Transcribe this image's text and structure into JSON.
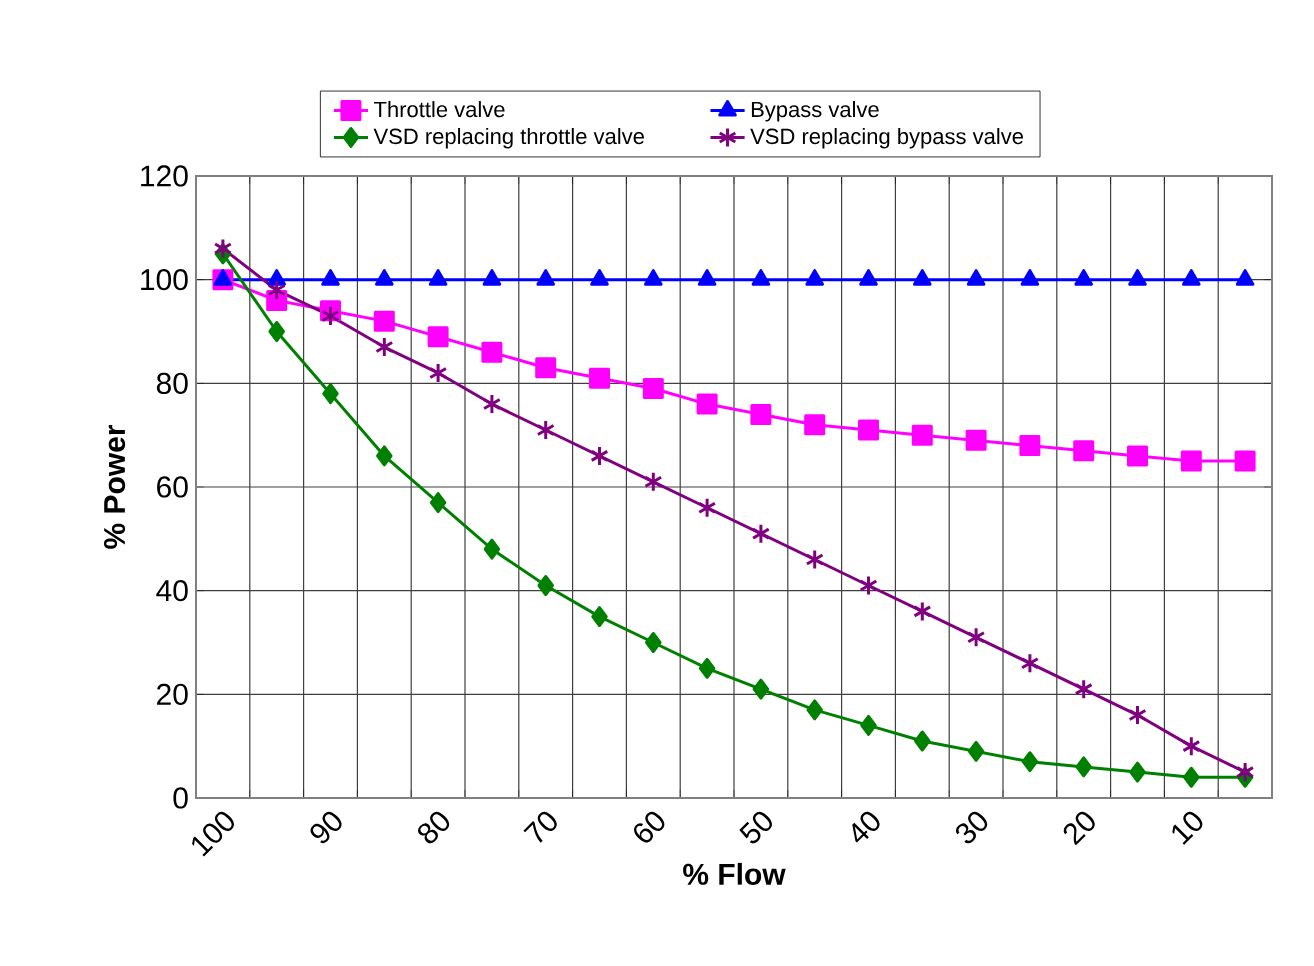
{
  "chart_data": {
    "type": "line",
    "xlabel": "% Flow",
    "ylabel": "% Power",
    "categories": [
      "100",
      null,
      "90",
      null,
      "80",
      null,
      "70",
      null,
      "60",
      null,
      "50",
      null,
      "40",
      null,
      "30",
      null,
      "20",
      null,
      "10",
      null
    ],
    "series": [
      {
        "name": "Throttle valve",
        "color": "#ff00ff",
        "marker": "square",
        "values": [
          100,
          96,
          94,
          92,
          89,
          86,
          83,
          81,
          79,
          76,
          74,
          72,
          71,
          70,
          69,
          68,
          67,
          66,
          65,
          65
        ]
      },
      {
        "name": "Bypass valve",
        "color": "#0000ff",
        "marker": "triangle",
        "values": [
          100,
          100,
          100,
          100,
          100,
          100,
          100,
          100,
          100,
          100,
          100,
          100,
          100,
          100,
          100,
          100,
          100,
          100,
          100,
          100
        ]
      },
      {
        "name": "VSD replacing throttle valve",
        "color": "#008000",
        "marker": "diamond",
        "values": [
          105,
          90,
          78,
          66,
          57,
          48,
          41,
          35,
          30,
          25,
          21,
          17,
          14,
          11,
          9,
          7,
          6,
          5,
          4,
          4
        ]
      },
      {
        "name": "VSD replacing bypass valve",
        "color": "#800080",
        "marker": "cross",
        "values": [
          106,
          98,
          93,
          87,
          82,
          76,
          71,
          66,
          61,
          56,
          51,
          46,
          41,
          36,
          31,
          26,
          21,
          16,
          10,
          5
        ]
      }
    ],
    "ylim": [
      0,
      120
    ],
    "yticks": [
      0,
      20,
      40,
      60,
      80,
      100,
      120
    ],
    "grid": true,
    "legend": "top",
    "line_style": "solid"
  }
}
